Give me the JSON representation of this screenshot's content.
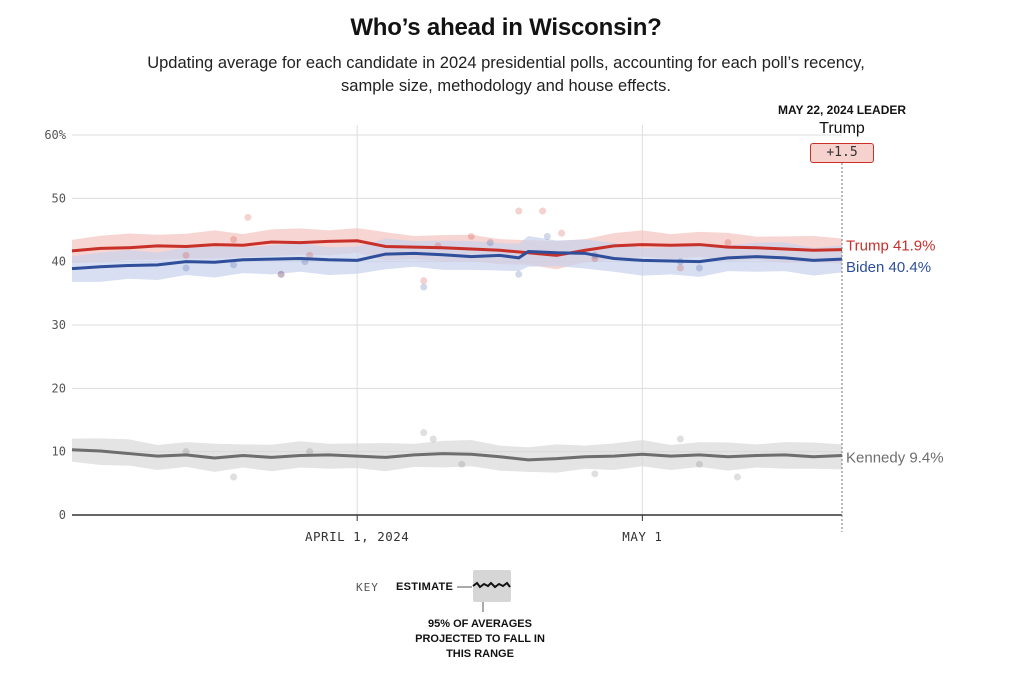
{
  "header": {
    "title": "Who’s ahead in Wisconsin?",
    "subtitle": "Updating average for each candidate in 2024 presidential polls, accounting for each poll’s recency, sample size, methodology and house effects."
  },
  "leader": {
    "label": "MAY 22, 2024 LEADER",
    "name": "Trump",
    "margin": "+1.5"
  },
  "key": {
    "word": "KEY",
    "estimate": "ESTIMATE",
    "range_lines": [
      "95% OF AVERAGES",
      "PROJECTED TO FALL IN",
      "THIS RANGE"
    ]
  },
  "colors": {
    "trump": "#c8302a",
    "biden": "#2f4f9a",
    "kennedy": "#6e6e6e",
    "trump_band": "#f3c3bf",
    "biden_band": "#c8d2ec",
    "kennedy_band": "#d8d8d8",
    "axis": "#333333",
    "grid": "#dddddd"
  },
  "chart_data": {
    "type": "line",
    "title": "Who’s ahead in Wisconsin?",
    "y_ticks": [
      "60%",
      "50",
      "40",
      "30",
      "20",
      "10",
      "0"
    ],
    "y_tick_values": [
      60,
      50,
      40,
      30,
      20,
      10,
      0
    ],
    "ylim": [
      0,
      60
    ],
    "x_ticks": [
      {
        "label": "APRIL 1, 2024",
        "day": 21
      },
      {
        "label": "MAY 1",
        "day": 51
      }
    ],
    "x_range_days": [
      -9,
      72
    ],
    "x_note": "day 0 = March 11, 2024; end of series = May 22, 2024",
    "end_date_label": "May 22, 2024",
    "series": [
      {
        "name": "Trump",
        "end_label": "Trump 41.9%",
        "color_key": "trump",
        "band_half_width": 2.0,
        "x": [
          -9,
          -6,
          -3,
          0,
          3,
          6,
          9,
          12,
          15,
          18,
          21,
          24,
          27,
          30,
          33,
          36,
          39,
          42,
          45,
          48,
          51,
          54,
          57,
          60,
          63,
          66,
          69,
          72
        ],
        "y": [
          41.7,
          42.1,
          42.2,
          42.5,
          42.4,
          42.7,
          42.6,
          43.1,
          43.0,
          43.2,
          43.3,
          42.4,
          42.3,
          42.2,
          42.0,
          41.8,
          41.4,
          41.0,
          41.8,
          42.5,
          42.7,
          42.6,
          42.7,
          42.3,
          42.2,
          42.0,
          41.8,
          41.9
        ]
      },
      {
        "name": "Biden",
        "end_label": "Biden 40.4%",
        "color_key": "biden",
        "band_half_width": 2.2,
        "x": [
          -9,
          -6,
          -3,
          0,
          3,
          6,
          9,
          12,
          15,
          18,
          21,
          24,
          27,
          30,
          33,
          36,
          38,
          39,
          42,
          45,
          48,
          51,
          54,
          57,
          60,
          63,
          66,
          69,
          72
        ],
        "y": [
          38.9,
          39.2,
          39.4,
          39.5,
          40.0,
          39.9,
          40.3,
          40.4,
          40.5,
          40.3,
          40.2,
          41.2,
          41.3,
          41.1,
          40.8,
          41.0,
          40.6,
          41.6,
          41.4,
          41.3,
          40.5,
          40.2,
          40.1,
          40.0,
          40.6,
          40.8,
          40.6,
          40.2,
          40.4
        ]
      },
      {
        "name": "Kennedy",
        "end_label": "Kennedy 9.4%",
        "color_key": "kennedy",
        "band_half_width": 2.0,
        "x": [
          -9,
          -6,
          -3,
          0,
          3,
          6,
          9,
          12,
          15,
          18,
          21,
          24,
          27,
          30,
          33,
          36,
          39,
          42,
          45,
          48,
          51,
          54,
          57,
          60,
          63,
          66,
          69,
          72
        ],
        "y": [
          10.3,
          10.1,
          9.7,
          9.3,
          9.5,
          9.0,
          9.4,
          9.1,
          9.4,
          9.5,
          9.3,
          9.1,
          9.5,
          9.7,
          9.6,
          9.2,
          8.7,
          8.9,
          9.2,
          9.3,
          9.6,
          9.3,
          9.5,
          9.2,
          9.4,
          9.5,
          9.2,
          9.4
        ]
      }
    ],
    "polls": {
      "trump": [
        [
          3,
          41
        ],
        [
          8,
          43.5
        ],
        [
          9.5,
          47
        ],
        [
          13,
          38
        ],
        [
          16,
          41
        ],
        [
          28,
          37
        ],
        [
          29.5,
          42.5
        ],
        [
          33,
          44
        ],
        [
          38,
          48
        ],
        [
          40.5,
          48
        ],
        [
          42.5,
          44.5
        ],
        [
          46,
          40.5
        ],
        [
          55,
          39
        ],
        [
          60,
          43
        ]
      ],
      "biden": [
        [
          3,
          39
        ],
        [
          8,
          39.5
        ],
        [
          13,
          38
        ],
        [
          15.5,
          40
        ],
        [
          28,
          36
        ],
        [
          35,
          43
        ],
        [
          38,
          38
        ],
        [
          41,
          44
        ],
        [
          46,
          41
        ],
        [
          55,
          40
        ],
        [
          57,
          39
        ]
      ],
      "kennedy": [
        [
          3,
          10
        ],
        [
          8,
          6
        ],
        [
          16,
          10
        ],
        [
          28,
          13
        ],
        [
          29,
          12
        ],
        [
          32,
          8
        ],
        [
          46,
          6.5
        ],
        [
          55,
          12
        ],
        [
          57,
          8
        ],
        [
          61,
          6
        ]
      ]
    }
  }
}
